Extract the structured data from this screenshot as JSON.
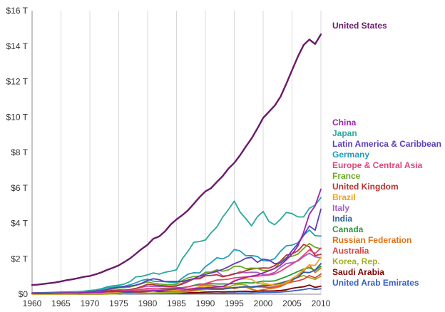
{
  "chart_data": {
    "type": "line",
    "title": "",
    "xlabel": "",
    "ylabel": "",
    "xlim": [
      1960,
      2010
    ],
    "ylim": [
      0,
      16
    ],
    "y_unit": "trillions (T)",
    "grid": "vertical",
    "legend_placement": "right",
    "x_ticks": [
      "1960",
      "1965",
      "1970",
      "1975",
      "1980",
      "1985",
      "1990",
      "1995",
      "2000",
      "2005",
      "2010"
    ],
    "x_tick_values": [
      1960,
      1965,
      1970,
      1975,
      1980,
      1985,
      1990,
      1995,
      2000,
      2005,
      2010
    ],
    "y_ticks": [
      "$0",
      "$2 T",
      "$4 T",
      "$6 T",
      "$8 T",
      "$10 T",
      "$12 T",
      "$14 T",
      "$16 T"
    ],
    "y_tick_values": [
      0,
      2,
      4,
      6,
      8,
      10,
      12,
      14,
      16
    ],
    "x": [
      1960,
      1961,
      1962,
      1963,
      1964,
      1965,
      1966,
      1967,
      1968,
      1969,
      1970,
      1971,
      1972,
      1973,
      1974,
      1975,
      1976,
      1977,
      1978,
      1979,
      1980,
      1981,
      1982,
      1983,
      1984,
      1985,
      1986,
      1987,
      1988,
      1989,
      1990,
      1991,
      1992,
      1993,
      1994,
      1995,
      1996,
      1997,
      1998,
      1999,
      2000,
      2001,
      2002,
      2003,
      2004,
      2005,
      2006,
      2007,
      2008,
      2009,
      2010
    ],
    "series": [
      {
        "name": "United States",
        "color": "#6a1b6a",
        "values": [
          0.52,
          0.54,
          0.58,
          0.62,
          0.66,
          0.72,
          0.79,
          0.84,
          0.91,
          0.98,
          1.03,
          1.12,
          1.23,
          1.37,
          1.49,
          1.63,
          1.82,
          2.03,
          2.29,
          2.56,
          2.79,
          3.13,
          3.26,
          3.54,
          3.93,
          4.22,
          4.46,
          4.74,
          5.1,
          5.48,
          5.8,
          5.99,
          6.34,
          6.67,
          7.09,
          7.41,
          7.84,
          8.33,
          8.79,
          9.35,
          9.95,
          10.29,
          10.64,
          11.14,
          11.87,
          12.64,
          13.4,
          14.06,
          14.37,
          14.12,
          14.66
        ]
      },
      {
        "name": "China",
        "color": "#a020b0",
        "values": [
          0.06,
          0.05,
          0.05,
          0.05,
          0.06,
          0.07,
          0.08,
          0.07,
          0.07,
          0.08,
          0.09,
          0.1,
          0.11,
          0.14,
          0.14,
          0.16,
          0.15,
          0.17,
          0.15,
          0.18,
          0.19,
          0.2,
          0.2,
          0.23,
          0.26,
          0.31,
          0.3,
          0.27,
          0.31,
          0.35,
          0.36,
          0.38,
          0.42,
          0.44,
          0.56,
          0.73,
          0.86,
          0.95,
          1.02,
          1.08,
          1.2,
          1.32,
          1.45,
          1.64,
          1.93,
          2.26,
          2.71,
          3.49,
          4.52,
          4.99,
          5.93
        ]
      },
      {
        "name": "Japan",
        "color": "#2aa99c",
        "values": [
          0.04,
          0.05,
          0.06,
          0.07,
          0.08,
          0.09,
          0.11,
          0.12,
          0.14,
          0.17,
          0.21,
          0.24,
          0.31,
          0.42,
          0.47,
          0.51,
          0.58,
          0.72,
          0.98,
          1.01,
          1.09,
          1.2,
          1.13,
          1.24,
          1.3,
          1.38,
          2.0,
          2.43,
          2.93,
          2.97,
          3.06,
          3.47,
          3.8,
          4.35,
          4.78,
          5.26,
          4.64,
          4.26,
          3.86,
          4.37,
          4.67,
          4.1,
          3.92,
          4.23,
          4.61,
          4.55,
          4.36,
          4.36,
          4.85,
          5.03,
          5.45
        ]
      },
      {
        "name": "Latin America & Caribbean",
        "color": "#5c3eb8",
        "values": [
          0.07,
          0.07,
          0.08,
          0.08,
          0.09,
          0.1,
          0.11,
          0.12,
          0.13,
          0.14,
          0.16,
          0.18,
          0.2,
          0.26,
          0.34,
          0.38,
          0.42,
          0.46,
          0.52,
          0.62,
          0.78,
          0.87,
          0.82,
          0.71,
          0.72,
          0.72,
          0.72,
          0.79,
          0.88,
          1.03,
          1.12,
          1.2,
          1.3,
          1.4,
          1.55,
          1.72,
          1.85,
          2.03,
          2.08,
          1.8,
          1.98,
          1.92,
          1.72,
          1.76,
          2.02,
          2.46,
          2.83,
          3.32,
          3.85,
          3.61,
          4.8
        ]
      },
      {
        "name": "Germany",
        "color": "#1f9eb8",
        "values": [
          0.07,
          0.08,
          0.09,
          0.1,
          0.11,
          0.12,
          0.13,
          0.14,
          0.15,
          0.17,
          0.2,
          0.23,
          0.27,
          0.35,
          0.39,
          0.43,
          0.46,
          0.53,
          0.65,
          0.78,
          0.85,
          0.73,
          0.72,
          0.71,
          0.67,
          0.64,
          0.91,
          1.13,
          1.21,
          1.2,
          1.55,
          1.79,
          2.06,
          1.99,
          2.15,
          2.52,
          2.44,
          2.17,
          2.18,
          2.13,
          1.89,
          1.88,
          2.01,
          2.42,
          2.73,
          2.77,
          2.9,
          3.32,
          3.62,
          3.3,
          3.28
        ]
      },
      {
        "name": "Europe & Central Asia",
        "color": "#e0467c",
        "values": [
          0.04,
          0.04,
          0.05,
          0.05,
          0.06,
          0.06,
          0.07,
          0.07,
          0.08,
          0.09,
          0.1,
          0.11,
          0.12,
          0.14,
          0.16,
          0.18,
          0.2,
          0.22,
          0.24,
          0.28,
          0.32,
          0.31,
          0.3,
          0.3,
          0.29,
          0.3,
          0.36,
          0.42,
          0.48,
          0.52,
          0.6,
          0.7,
          0.8,
          0.82,
          0.85,
          0.92,
          0.95,
          0.98,
          1.0,
          1.02,
          1.05,
          1.08,
          1.14,
          1.3,
          1.5,
          1.7,
          1.9,
          2.2,
          2.5,
          2.3,
          2.6
        ]
      },
      {
        "name": "France",
        "color": "#6aa820",
        "values": [
          0.06,
          0.07,
          0.07,
          0.08,
          0.09,
          0.1,
          0.1,
          0.11,
          0.13,
          0.14,
          0.15,
          0.16,
          0.2,
          0.26,
          0.29,
          0.36,
          0.37,
          0.41,
          0.5,
          0.6,
          0.69,
          0.62,
          0.58,
          0.55,
          0.53,
          0.55,
          0.77,
          0.92,
          1.0,
          1.02,
          1.24,
          1.25,
          1.37,
          1.3,
          1.37,
          1.57,
          1.58,
          1.44,
          1.47,
          1.46,
          1.33,
          1.34,
          1.46,
          1.8,
          2.06,
          2.14,
          2.26,
          2.58,
          2.86,
          2.65,
          2.56
        ]
      },
      {
        "name": "United Kingdom",
        "color": "#b83232",
        "values": [
          0.07,
          0.08,
          0.08,
          0.09,
          0.09,
          0.1,
          0.11,
          0.11,
          0.11,
          0.12,
          0.13,
          0.15,
          0.17,
          0.19,
          0.21,
          0.24,
          0.23,
          0.26,
          0.33,
          0.44,
          0.56,
          0.53,
          0.5,
          0.47,
          0.44,
          0.47,
          0.57,
          0.71,
          0.86,
          0.87,
          1.04,
          1.06,
          1.1,
          0.98,
          1.06,
          1.16,
          1.2,
          1.33,
          1.42,
          1.46,
          1.48,
          1.47,
          1.61,
          1.86,
          2.2,
          2.28,
          2.44,
          2.81,
          2.67,
          2.18,
          2.25
        ]
      },
      {
        "name": "Brazil",
        "color": "#f0a020",
        "values": [
          0.02,
          0.02,
          0.02,
          0.02,
          0.02,
          0.03,
          0.03,
          0.03,
          0.04,
          0.04,
          0.04,
          0.05,
          0.06,
          0.08,
          0.11,
          0.13,
          0.15,
          0.18,
          0.2,
          0.22,
          0.24,
          0.26,
          0.28,
          0.2,
          0.19,
          0.22,
          0.26,
          0.29,
          0.33,
          0.42,
          0.46,
          0.41,
          0.39,
          0.44,
          0.56,
          0.77,
          0.84,
          0.87,
          0.84,
          0.59,
          0.64,
          0.55,
          0.5,
          0.55,
          0.66,
          0.88,
          1.09,
          1.37,
          1.65,
          1.62,
          2.09
        ]
      },
      {
        "name": "Italy",
        "color": "#a45cc8",
        "values": [
          0.04,
          0.05,
          0.05,
          0.06,
          0.07,
          0.07,
          0.08,
          0.09,
          0.1,
          0.11,
          0.11,
          0.12,
          0.15,
          0.18,
          0.2,
          0.23,
          0.23,
          0.26,
          0.32,
          0.39,
          0.46,
          0.43,
          0.43,
          0.44,
          0.44,
          0.45,
          0.63,
          0.8,
          0.87,
          0.92,
          1.13,
          1.2,
          1.28,
          1.03,
          1.05,
          1.13,
          1.27,
          1.21,
          1.24,
          1.23,
          1.1,
          1.12,
          1.23,
          1.51,
          1.73,
          1.78,
          1.87,
          2.12,
          2.31,
          2.11,
          2.05
        ]
      },
      {
        "name": "India",
        "color": "#2e5f9a",
        "values": [
          0.04,
          0.04,
          0.04,
          0.05,
          0.06,
          0.06,
          0.05,
          0.05,
          0.05,
          0.06,
          0.06,
          0.07,
          0.07,
          0.08,
          0.1,
          0.1,
          0.1,
          0.12,
          0.14,
          0.15,
          0.19,
          0.2,
          0.2,
          0.22,
          0.21,
          0.23,
          0.25,
          0.28,
          0.3,
          0.3,
          0.33,
          0.28,
          0.29,
          0.28,
          0.33,
          0.37,
          0.4,
          0.42,
          0.42,
          0.45,
          0.47,
          0.49,
          0.52,
          0.62,
          0.72,
          0.83,
          0.95,
          1.24,
          1.22,
          1.36,
          1.73
        ]
      },
      {
        "name": "Canada",
        "color": "#2a9a3a",
        "values": [
          0.04,
          0.04,
          0.04,
          0.05,
          0.05,
          0.06,
          0.06,
          0.07,
          0.07,
          0.08,
          0.09,
          0.1,
          0.11,
          0.13,
          0.16,
          0.17,
          0.21,
          0.21,
          0.22,
          0.24,
          0.27,
          0.3,
          0.31,
          0.34,
          0.35,
          0.36,
          0.37,
          0.42,
          0.5,
          0.57,
          0.58,
          0.6,
          0.58,
          0.58,
          0.58,
          0.6,
          0.63,
          0.65,
          0.63,
          0.67,
          0.74,
          0.73,
          0.75,
          0.87,
          0.99,
          1.13,
          1.28,
          1.42,
          1.5,
          1.34,
          1.58
        ]
      },
      {
        "name": "Russian Federation",
        "color": "#e07010",
        "values": [
          null,
          null,
          null,
          null,
          null,
          null,
          null,
          null,
          null,
          null,
          null,
          null,
          null,
          null,
          null,
          null,
          null,
          null,
          null,
          null,
          null,
          null,
          null,
          null,
          null,
          null,
          null,
          null,
          null,
          0.51,
          0.52,
          0.51,
          0.46,
          0.44,
          0.4,
          0.31,
          0.39,
          0.4,
          0.27,
          0.2,
          0.26,
          0.31,
          0.35,
          0.43,
          0.59,
          0.76,
          0.99,
          1.3,
          1.66,
          1.22,
          1.48
        ]
      },
      {
        "name": "Australia",
        "color": "#e04040",
        "values": [
          0.02,
          0.02,
          0.02,
          0.02,
          0.02,
          0.03,
          0.03,
          0.03,
          0.03,
          0.04,
          0.04,
          0.05,
          0.05,
          0.07,
          0.09,
          0.1,
          0.1,
          0.11,
          0.12,
          0.13,
          0.15,
          0.18,
          0.18,
          0.17,
          0.19,
          0.18,
          0.18,
          0.19,
          0.24,
          0.29,
          0.31,
          0.33,
          0.32,
          0.31,
          0.33,
          0.37,
          0.4,
          0.43,
          0.39,
          0.42,
          0.41,
          0.38,
          0.41,
          0.48,
          0.6,
          0.69,
          0.75,
          0.85,
          1.05,
          0.92,
          1.14
        ]
      },
      {
        "name": "Korea, Rep.",
        "color": "#a0b020",
        "values": [
          0.0,
          0.0,
          0.0,
          0.0,
          0.0,
          0.0,
          0.0,
          0.0,
          0.01,
          0.01,
          0.01,
          0.01,
          0.01,
          0.01,
          0.02,
          0.02,
          0.03,
          0.04,
          0.05,
          0.06,
          0.06,
          0.07,
          0.08,
          0.09,
          0.1,
          0.1,
          0.12,
          0.14,
          0.19,
          0.23,
          0.26,
          0.3,
          0.32,
          0.35,
          0.4,
          0.52,
          0.56,
          0.52,
          0.35,
          0.45,
          0.53,
          0.5,
          0.58,
          0.64,
          0.72,
          0.84,
          0.95,
          1.05,
          0.93,
          0.83,
          1.01
        ]
      },
      {
        "name": "Saudi Arabia",
        "color": "#800000",
        "values": [
          null,
          null,
          null,
          null,
          null,
          null,
          null,
          null,
          0.01,
          0.01,
          0.01,
          0.01,
          0.01,
          0.02,
          0.04,
          0.05,
          0.06,
          0.07,
          0.08,
          0.11,
          0.16,
          0.18,
          0.15,
          0.13,
          0.12,
          0.1,
          0.09,
          0.09,
          0.09,
          0.1,
          0.12,
          0.13,
          0.14,
          0.13,
          0.14,
          0.14,
          0.16,
          0.17,
          0.15,
          0.16,
          0.19,
          0.18,
          0.19,
          0.21,
          0.25,
          0.33,
          0.38,
          0.42,
          0.52,
          0.38,
          0.45
        ]
      },
      {
        "name": "United Arab Emirates",
        "color": "#3a60c8",
        "values": [
          null,
          null,
          null,
          null,
          null,
          null,
          null,
          null,
          null,
          null,
          null,
          null,
          null,
          null,
          null,
          0.01,
          0.02,
          0.02,
          0.02,
          0.03,
          0.04,
          0.05,
          0.05,
          0.04,
          0.04,
          0.04,
          0.03,
          0.03,
          0.04,
          0.04,
          0.05,
          0.05,
          0.05,
          0.05,
          0.06,
          0.06,
          0.07,
          0.07,
          0.07,
          0.08,
          0.1,
          0.1,
          0.11,
          0.12,
          0.15,
          0.18,
          0.22,
          0.26,
          0.32,
          0.27,
          0.3
        ]
      }
    ]
  }
}
